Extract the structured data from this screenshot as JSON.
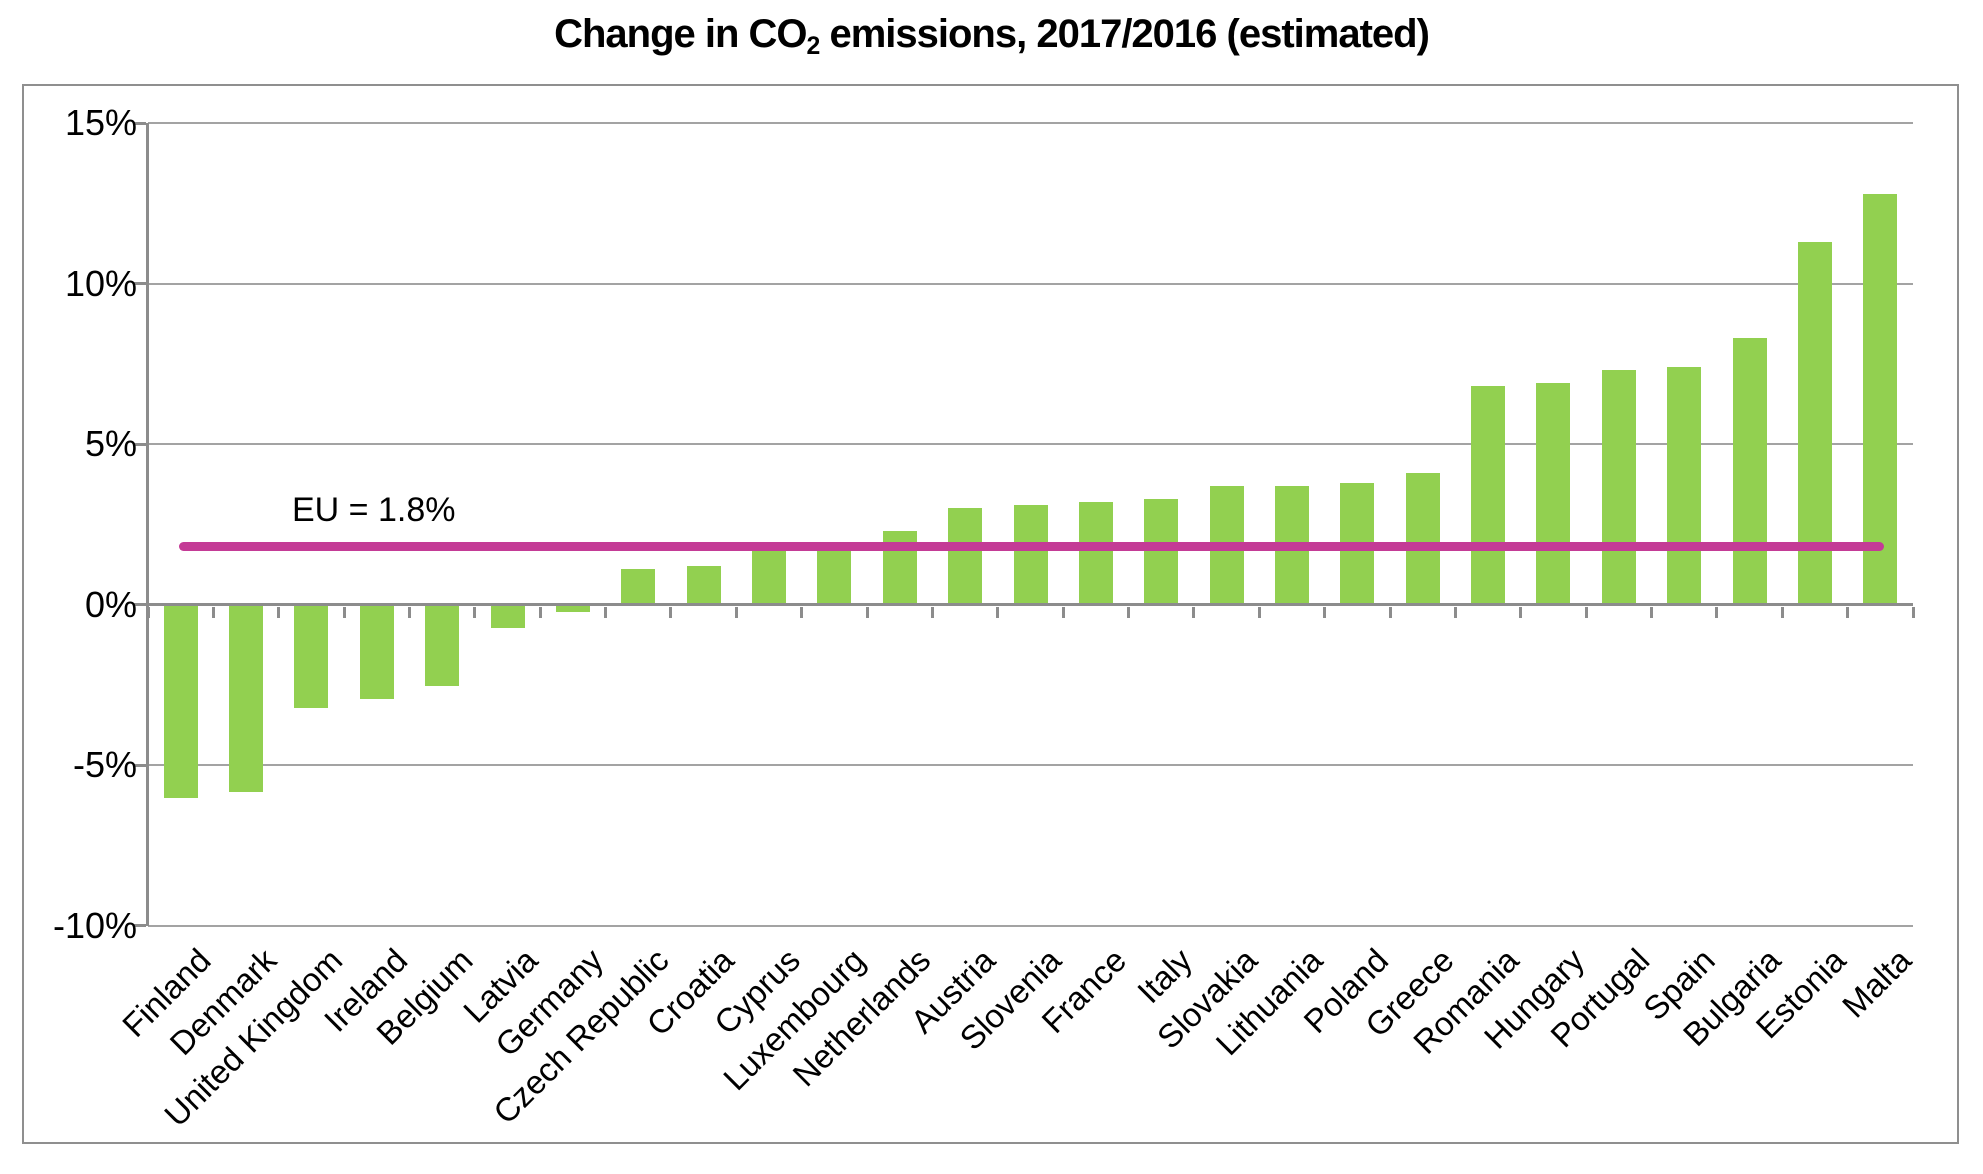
{
  "title": {
    "prefix": "Change in CO",
    "sub": "2",
    "suffix": " emissions, 2017/2016 (estimated)"
  },
  "eu_line": {
    "label": "EU = 1.8%",
    "value": 1.8,
    "color": "#c43b96"
  },
  "colors": {
    "bar": "#92d050",
    "gridline": "#a3a3a3",
    "axis": "#8c8c8c",
    "border": "#8f8f8f",
    "text": "#000000",
    "background": "#ffffff"
  },
  "y_axis": {
    "ticks": [
      "15%",
      "10%",
      "5%",
      "0%",
      "-5%",
      "-10%"
    ],
    "max": 15,
    "min": -10,
    "step": 5
  },
  "chart_data": {
    "type": "bar",
    "title": "Change in CO2 emissions, 2017/2016 (estimated)",
    "xlabel": "",
    "ylabel": "",
    "ylim": [
      -10,
      15
    ],
    "ytick_labels": [
      "15%",
      "10%",
      "5%",
      "0%",
      "-5%",
      "-10%"
    ],
    "grid": true,
    "legend": false,
    "bar_color": "#92d050",
    "categories": [
      "Finland",
      "Denmark",
      "United Kingdom",
      "Ireland",
      "Belgium",
      "Latvia",
      "Germany",
      "Czech Republic",
      "Croatia",
      "Cyprus",
      "Luxembourg",
      "Netherlands",
      "Austria",
      "Slovenia",
      "France",
      "Italy",
      "Slovakia",
      "Lithuania",
      "Poland",
      "Greece",
      "Romania",
      "Hungary",
      "Portugal",
      "Spain",
      "Bulgaria",
      "Estonia",
      "Malta"
    ],
    "values": [
      -6.0,
      -5.8,
      -3.2,
      -2.9,
      -2.5,
      -0.7,
      -0.2,
      1.1,
      1.2,
      1.7,
      1.7,
      2.3,
      3.0,
      3.1,
      3.2,
      3.3,
      3.7,
      3.7,
      3.8,
      4.1,
      6.8,
      6.9,
      7.3,
      7.4,
      8.3,
      11.3,
      12.8
    ],
    "reference_line": {
      "label": "EU = 1.8%",
      "value": 1.8,
      "color": "#c43b96"
    }
  }
}
